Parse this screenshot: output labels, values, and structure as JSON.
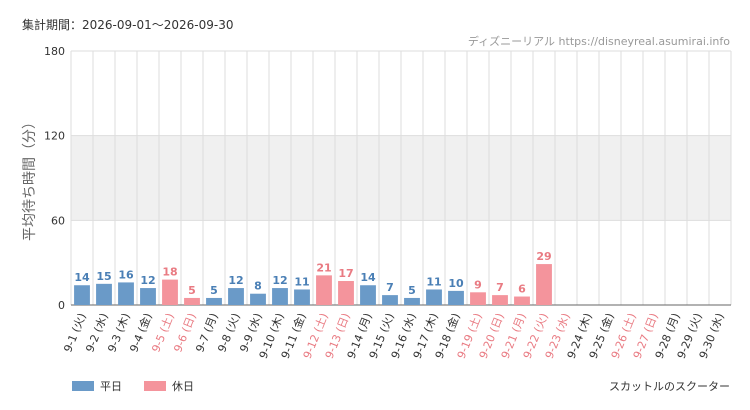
{
  "header": {
    "period_label": "集計期間：2026-09-01～2026-09-30",
    "source_name": "ディズニーリアル",
    "source_url": "https://disneyreal.asumirai.info"
  },
  "footer": {
    "attraction": "スカットルのスクーター"
  },
  "legend": [
    {
      "label": "平日",
      "color": "#6a9ac8"
    },
    {
      "label": "休日",
      "color": "#f4949c"
    }
  ],
  "colors": {
    "weekday": "#6a9ac8",
    "holiday": "#f4949c",
    "weekday_text": "#4a7fb5",
    "holiday_text": "#e97a82",
    "band": "#f0f0f0",
    "grid": "#dddddd"
  },
  "chart_data": {
    "type": "bar",
    "ylabel": "平均待ち時間（分）",
    "ylim": [
      0,
      180
    ],
    "yticks": [
      0,
      60,
      120,
      180
    ],
    "highlight_band": [
      60,
      120
    ],
    "categories": [
      "9-1 (火)",
      "9-2 (水)",
      "9-3 (木)",
      "9-4 (金)",
      "9-5 (土)",
      "9-6 (日)",
      "9-7 (月)",
      "9-8 (火)",
      "9-9 (水)",
      "9-10 (木)",
      "9-11 (金)",
      "9-12 (土)",
      "9-13 (日)",
      "9-14 (月)",
      "9-15 (火)",
      "9-16 (水)",
      "9-17 (木)",
      "9-18 (金)",
      "9-19 (土)",
      "9-20 (日)",
      "9-21 (月)",
      "9-22 (火)",
      "9-23 (水)",
      "9-24 (木)",
      "9-25 (金)",
      "9-26 (土)",
      "9-27 (日)",
      "9-28 (月)",
      "9-29 (火)",
      "9-30 (水)"
    ],
    "values": [
      14,
      15,
      16,
      12,
      18,
      5,
      5,
      12,
      8,
      12,
      11,
      21,
      17,
      14,
      7,
      5,
      11,
      10,
      9,
      7,
      6,
      29,
      null,
      null,
      null,
      null,
      null,
      null,
      null,
      null
    ],
    "holiday": [
      false,
      false,
      false,
      false,
      true,
      true,
      false,
      false,
      false,
      false,
      false,
      true,
      true,
      false,
      false,
      false,
      false,
      false,
      true,
      true,
      true,
      true,
      true,
      false,
      false,
      true,
      true,
      false,
      false,
      false
    ]
  }
}
